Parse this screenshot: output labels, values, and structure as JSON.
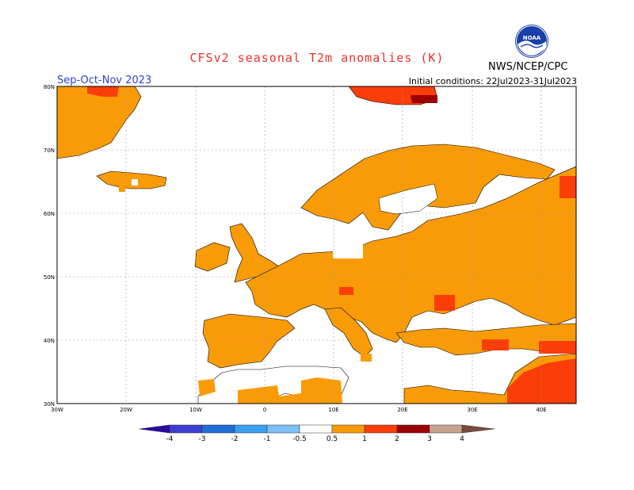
{
  "header": {
    "title": "CFSv2 seasonal T2m anomalies (K)",
    "period": "Sep-Oct-Nov 2023",
    "initial_conditions": "Initial conditions: 22Jul2023-31Jul2023",
    "agency": "NWS/NCEP/CPC",
    "logo_text": "NOAA"
  },
  "map": {
    "lat_labels": [
      "80N",
      "70N",
      "60N",
      "50N",
      "40N",
      "30N"
    ],
    "lon_labels": [
      "30W",
      "20W",
      "10W",
      "0",
      "10E",
      "20E",
      "30E",
      "40E"
    ],
    "lat_range": [
      30,
      80
    ],
    "lon_range": [
      -30,
      45
    ],
    "grid": true,
    "colors": {
      "land_outline": "#000000",
      "grid": "#9a9a9a",
      "anomaly_0_5_1": "#f99b07",
      "anomaly_1_2": "#fb3d09",
      "anomaly_2_3": "#9c0005"
    }
  },
  "legend": {
    "labels": [
      "-4",
      "-3",
      "-2",
      "-1",
      "-0.5",
      "0.5",
      "1",
      "2",
      "3",
      "4"
    ],
    "colors": [
      "#2b0a9e",
      "#3c3fd3",
      "#1f6fd6",
      "#3b9ff0",
      "#7dc0f7",
      "#ffffff",
      "#f99b07",
      "#fb3d09",
      "#9c0005",
      "#c8a290",
      "#7a4a3c"
    ]
  }
}
